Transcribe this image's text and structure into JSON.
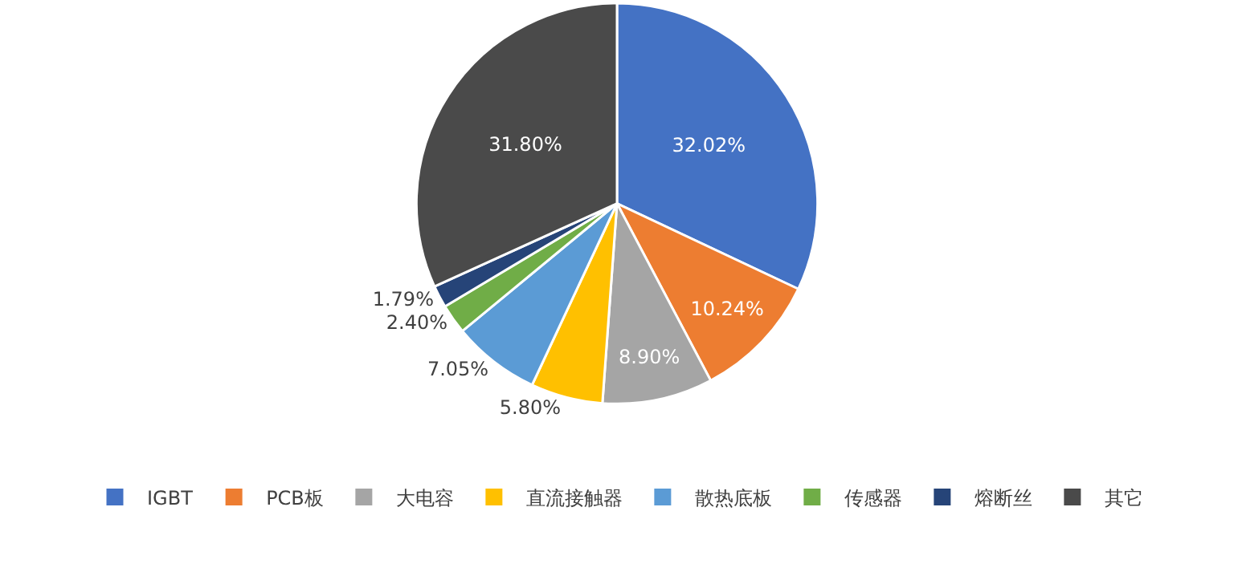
{
  "chart_data": {
    "type": "pie",
    "categories": [
      "IGBT",
      "PCB板",
      "大电容",
      "直流接触器",
      "散热底板",
      "传感器",
      "熔断丝",
      "其它"
    ],
    "values": [
      32.02,
      10.24,
      8.9,
      5.8,
      7.05,
      2.4,
      1.79,
      31.8
    ],
    "value_labels": [
      "32.02%",
      "10.24%",
      "8.90%",
      "5.80%",
      "7.05%",
      "2.40%",
      "1.79%",
      "31.80%"
    ],
    "colors": [
      "#4472c4",
      "#ed7d31",
      "#a5a5a5",
      "#ffc000",
      "#5b9bd5",
      "#70ad47",
      "#264478",
      "#4a4a4a"
    ],
    "legend": "bottom"
  }
}
